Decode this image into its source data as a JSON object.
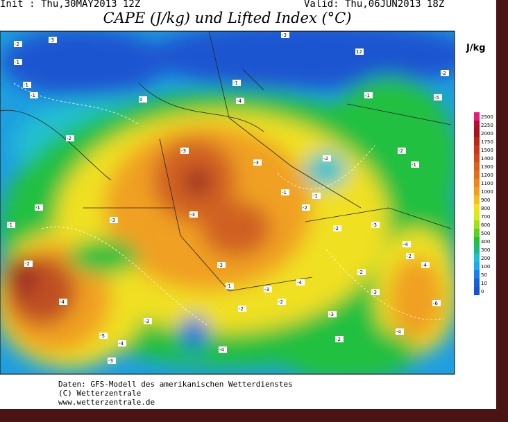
{
  "header": {
    "init": "Init : Thu,30MAY2013 12Z",
    "valid": "Valid: Thu,06JUN2013 18Z",
    "title": "CAPE (J/kg) und Lifted Index (°C)"
  },
  "colorbar": {
    "unit": "J/kg",
    "levels": [
      "2500",
      "2250",
      "2000",
      "1750",
      "1500",
      "1400",
      "1300",
      "1200",
      "1100",
      "1000",
      "900",
      "800",
      "700",
      "600",
      "500",
      "400",
      "300",
      "200",
      "100",
      "50",
      "10",
      "0"
    ]
  },
  "map_labels": [
    "-2",
    "-1",
    "-3",
    "-1",
    "-1",
    "12",
    "-3",
    "-1",
    "-2",
    "-1",
    "0",
    "-3",
    "-2",
    "-3",
    "-1",
    "-2",
    "-1",
    "-4",
    "-2",
    "-1",
    "-3",
    "-3",
    "-2",
    "-1",
    "-1",
    "-3",
    "-4",
    "-4",
    "-3",
    "-2",
    "-2",
    "-5",
    "-4",
    "-6",
    "-3",
    "-4",
    "-5",
    "-3",
    "-4",
    "-2",
    "-3",
    "-2",
    "-1",
    "-3",
    "-4",
    "-4",
    "-2",
    "-3",
    "-2",
    "-2"
  ],
  "footer": [
    "Daten: GFS-Modell des amerikanischen Wetterdienstes",
    "(C) Wetterzentrale",
    "www.wetterzentrale.de"
  ]
}
